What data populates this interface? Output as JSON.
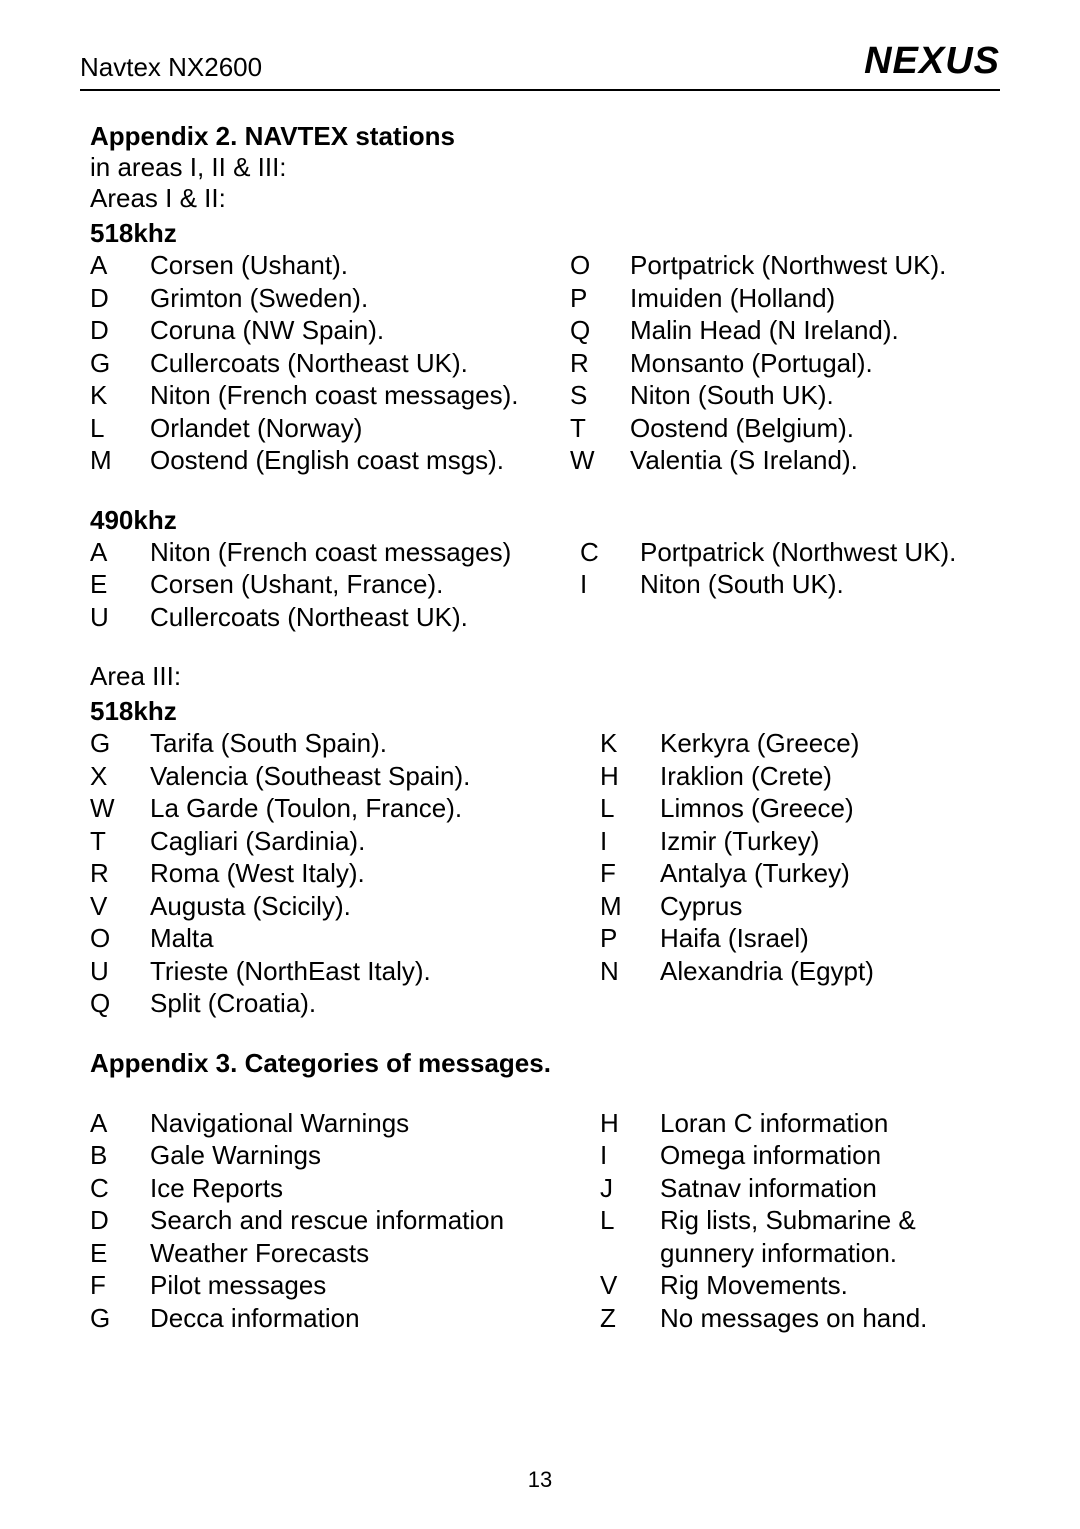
{
  "header": {
    "model": "Navtex NX2600",
    "brand": "NEXUS"
  },
  "appendix2": {
    "title": "Appendix 2. NAVTEX stations",
    "sub1": "in areas I, II & III:",
    "sub2": "Areas I & II:",
    "freq518": "518khz",
    "s518_l": [
      {
        "c": "A",
        "t": "Corsen (Ushant)."
      },
      {
        "c": "D",
        "t": "Grimton (Sweden)."
      },
      {
        "c": "D",
        "t": "Coruna (NW Spain)."
      },
      {
        "c": "G",
        "t": "Cullercoats (Northeast UK)."
      },
      {
        "c": "K",
        "t": "Niton (French coast messages)."
      },
      {
        "c": "L",
        "t": "Orlandet (Norway)"
      },
      {
        "c": "M",
        "t": "Oostend (English coast msgs)."
      }
    ],
    "s518_r": [
      {
        "c": "O",
        "t": "Portpatrick (Northwest UK)."
      },
      {
        "c": "P",
        "t": "Imuiden  (Holland)"
      },
      {
        "c": "Q",
        "t": "Malin Head (N Ireland)."
      },
      {
        "c": "R",
        "t": "Monsanto (Portugal)."
      },
      {
        "c": "S",
        "t": "Niton (South UK)."
      },
      {
        "c": "T",
        "t": "Oostend (Belgium)."
      },
      {
        "c": "W",
        "t": "Valentia (S Ireland)."
      }
    ],
    "freq490": "490khz",
    "s490_l": [
      {
        "c": "A",
        "t": "Niton (French coast messages)"
      },
      {
        "c": "E",
        "t": "Corsen (Ushant, France)."
      },
      {
        "c": "U",
        "t": "Cullercoats (Northeast UK)."
      }
    ],
    "s490_r": [
      {
        "c": "C",
        "t": "Portpatrick (Northwest UK)."
      },
      {
        "c": "I",
        "t": "Niton (South UK)."
      }
    ],
    "area3": "Area III:",
    "a3_518_l": [
      {
        "c": "G",
        "t": "Tarifa (South Spain)."
      },
      {
        "c": "X",
        "t": "Valencia (Southeast Spain)."
      },
      {
        "c": "W",
        "t": "La Garde (Toulon, France)."
      },
      {
        "c": "T",
        "t": "Cagliari (Sardinia)."
      },
      {
        "c": "R",
        "t": "Roma (West Italy)."
      },
      {
        "c": "V",
        "t": "Augusta (Scicily)."
      },
      {
        "c": "O",
        "t": "Malta"
      },
      {
        "c": "U",
        "t": "Trieste (NorthEast Italy)."
      },
      {
        "c": "Q",
        "t": "Split (Croatia)."
      }
    ],
    "a3_518_r": [
      {
        "c": "K",
        "t": "Kerkyra (Greece)"
      },
      {
        "c": "H",
        "t": "Iraklion (Crete)"
      },
      {
        "c": "L",
        "t": "Limnos (Greece)"
      },
      {
        "c": "I",
        "t": "Izmir (Turkey)"
      },
      {
        "c": "F",
        "t": "Antalya (Turkey)"
      },
      {
        "c": "M",
        "t": "Cyprus"
      },
      {
        "c": "P",
        "t": "Haifa (Israel)"
      },
      {
        "c": "N",
        "t": "Alexandria (Egypt)"
      }
    ]
  },
  "appendix3": {
    "title": "Appendix 3.  Categories of messages.",
    "cat_l": [
      {
        "c": "A",
        "t": "Navigational Warnings"
      },
      {
        "c": "B",
        "t": "Gale Warnings"
      },
      {
        "c": "C",
        "t": "Ice Reports"
      },
      {
        "c": "D",
        "t": "Search and rescue information"
      },
      {
        "c": "E",
        "t": "Weather Forecasts"
      },
      {
        "c": "F",
        "t": "Pilot messages"
      },
      {
        "c": "G",
        "t": "Decca information"
      }
    ],
    "cat_r": [
      {
        "c": "H",
        "t": "Loran C information"
      },
      {
        "c": "I",
        "t": "Omega information"
      },
      {
        "c": "J",
        "t": "Satnav information"
      },
      {
        "c": "L",
        "t": "Rig lists, Submarine & gunnery information."
      },
      {
        "c": "V",
        "t": "Rig Movements."
      },
      {
        "c": "Z",
        "t": "No messages on hand."
      }
    ]
  },
  "page": "13"
}
